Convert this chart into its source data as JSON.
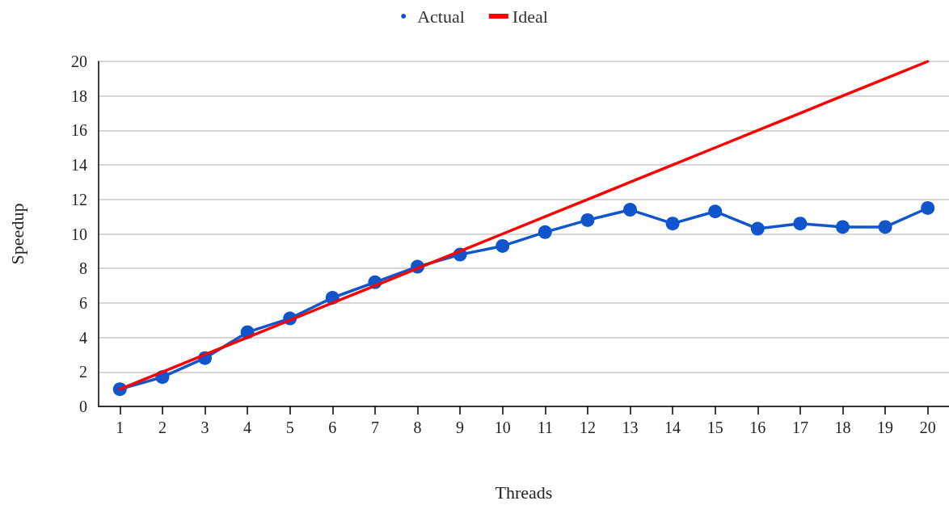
{
  "chart_data": {
    "type": "line",
    "xlabel": "Threads",
    "ylabel": "Speedup",
    "categories": [
      "1",
      "2",
      "3",
      "4",
      "5",
      "6",
      "7",
      "8",
      "9",
      "10",
      "11",
      "12",
      "13",
      "14",
      "15",
      "16",
      "17",
      "18",
      "19",
      "20"
    ],
    "series": [
      {
        "name": "Actual",
        "color": "#1155cc",
        "marker": "circle",
        "values": [
          1.0,
          1.7,
          2.8,
          4.3,
          5.1,
          6.3,
          7.2,
          8.1,
          8.8,
          9.3,
          10.1,
          10.8,
          11.4,
          10.6,
          11.3,
          10.3,
          10.6,
          10.4,
          10.4,
          11.5
        ]
      },
      {
        "name": "Ideal",
        "color": "#ff0000",
        "marker": "none",
        "values": [
          1,
          2,
          3,
          4,
          5,
          6,
          7,
          8,
          9,
          10,
          11,
          12,
          13,
          14,
          15,
          16,
          17,
          18,
          19,
          20
        ]
      }
    ],
    "ylim": [
      0,
      20
    ],
    "yticks": [
      0,
      2,
      4,
      6,
      8,
      10,
      12,
      14,
      16,
      18,
      20
    ],
    "grid": "y",
    "legend": "top"
  }
}
